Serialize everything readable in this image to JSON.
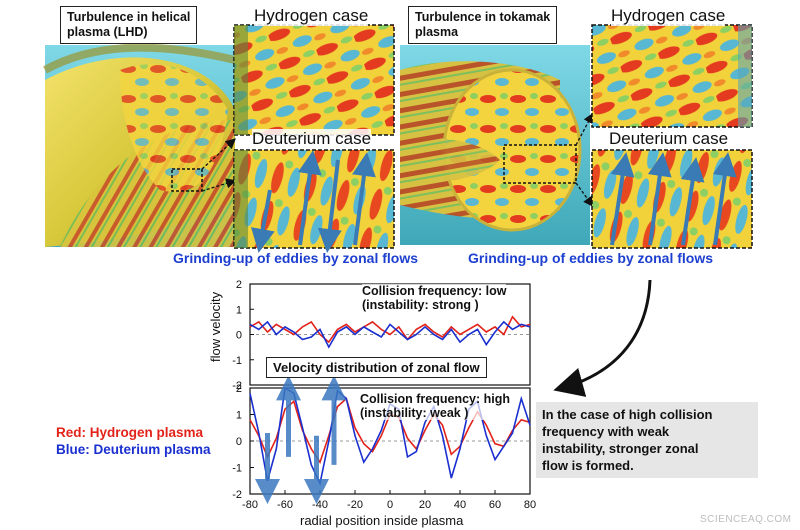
{
  "panels": {
    "left": {
      "title_line1": "Turbulence in helical",
      "title_line2": "plasma (LHD)",
      "hydrogen_label": "Hydrogen case",
      "deuterium_label": "Deuterium case",
      "caption": "Grinding-up of eddies by zonal flows"
    },
    "right": {
      "title_line1": "Turbulence in tokamak",
      "title_line2": "plasma",
      "hydrogen_label": "Hydrogen case",
      "deuterium_label": "Deuterium case",
      "caption": "Grinding-up of eddies by zonal flows"
    }
  },
  "legend": {
    "red": "Red: Hydrogen plasma",
    "blue": "Blue: Deuterium plasma"
  },
  "note": {
    "line1": "In the case of high collision",
    "line2": "frequency with weak",
    "line3": "instability, stronger zonal",
    "line4": "flow is formed."
  },
  "chart_data": {
    "type": "line",
    "title": "Velocity distribution of zonal flow",
    "xlabel": "radial position inside plasma",
    "ylabel": "flow velocity",
    "xlim": [
      -80,
      80
    ],
    "ylim": [
      -2,
      2
    ],
    "xticks": [
      "-80",
      "-60",
      "-40",
      "-20",
      "0",
      "20",
      "40",
      "60",
      "80"
    ],
    "yticks": [
      "2",
      "1",
      "0",
      "-1",
      "-2"
    ],
    "panels": [
      {
        "annotation_line1": "Collision frequency: low",
        "annotation_line2": "(instability: strong )",
        "series": [
          {
            "color": "#e2231a",
            "x": [
              -80,
              -75,
              -70,
              -65,
              -60,
              -55,
              -50,
              -45,
              -40,
              -35,
              -30,
              -25,
              -20,
              -15,
              -10,
              -5,
              0,
              5,
              10,
              15,
              20,
              25,
              30,
              35,
              40,
              45,
              50,
              55,
              60,
              65,
              70,
              75,
              80
            ],
            "y": [
              0.3,
              0.5,
              0.1,
              0.4,
              0.2,
              0.0,
              0.3,
              0.5,
              0.0,
              -0.3,
              0.2,
              0.4,
              0.1,
              0.3,
              0.5,
              0.2,
              0.0,
              0.3,
              -0.2,
              0.2,
              0.4,
              0.1,
              -0.1,
              0.3,
              0.0,
              0.2,
              0.4,
              0.1,
              0.3,
              0.0,
              0.7,
              0.3,
              0.4
            ]
          },
          {
            "color": "#1a2fd0",
            "x": [
              -80,
              -75,
              -70,
              -65,
              -60,
              -55,
              -50,
              -45,
              -40,
              -35,
              -30,
              -25,
              -20,
              -15,
              -10,
              -5,
              0,
              5,
              10,
              15,
              20,
              25,
              30,
              35,
              40,
              45,
              50,
              55,
              60,
              65,
              70,
              75,
              80
            ],
            "y": [
              0.4,
              0.2,
              0.5,
              0.0,
              0.3,
              0.1,
              -0.2,
              -0.1,
              0.2,
              -0.5,
              0.1,
              0.3,
              0.0,
              0.3,
              0.1,
              -0.1,
              0.4,
              0.1,
              -0.2,
              0.0,
              0.3,
              0.0,
              -0.2,
              0.2,
              -0.3,
              0.0,
              0.2,
              -0.4,
              0.1,
              0.5,
              0.2,
              0.4,
              0.3
            ]
          }
        ]
      },
      {
        "annotation_line1": "Collision frequency: high",
        "annotation_line2": "(instability: weak )",
        "series": [
          {
            "color": "#e2231a",
            "x": [
              -80,
              -75,
              -70,
              -65,
              -60,
              -55,
              -50,
              -45,
              -40,
              -35,
              -30,
              -25,
              -20,
              -15,
              -10,
              -5,
              0,
              5,
              10,
              15,
              20,
              25,
              30,
              35,
              40,
              45,
              50,
              55,
              60,
              65,
              70,
              75,
              80
            ],
            "y": [
              0.8,
              0.2,
              -0.6,
              0.1,
              1.2,
              1.5,
              0.4,
              -0.3,
              -0.8,
              0.2,
              1.3,
              1.6,
              0.5,
              -0.1,
              -0.4,
              0.2,
              1.0,
              0.9,
              0.1,
              -0.3,
              0.4,
              1.0,
              0.6,
              -0.5,
              -0.2,
              0.5,
              1.1,
              0.6,
              -0.1,
              -0.2,
              0.4,
              0.8,
              0.7
            ]
          },
          {
            "color": "#1a2fd0",
            "x": [
              -80,
              -75,
              -70,
              -65,
              -60,
              -55,
              -50,
              -45,
              -40,
              -35,
              -30,
              -25,
              -20,
              -15,
              -10,
              -5,
              0,
              5,
              10,
              15,
              20,
              25,
              30,
              35,
              40,
              45,
              50,
              55,
              60,
              65,
              70,
              75,
              80
            ],
            "y": [
              1.8,
              0.3,
              -1.5,
              -0.3,
              2.0,
              1.8,
              0.5,
              -0.9,
              -1.6,
              0.0,
              1.9,
              1.6,
              0.2,
              -0.8,
              -0.3,
              0.4,
              1.4,
              1.2,
              -0.6,
              -0.4,
              0.7,
              1.3,
              0.2,
              -1.4,
              -0.3,
              1.2,
              1.5,
              0.2,
              -0.7,
              -0.2,
              0.3,
              1.6,
              0.6
            ]
          }
        ]
      }
    ]
  },
  "watermark": "SCIENCEAQ.COM"
}
